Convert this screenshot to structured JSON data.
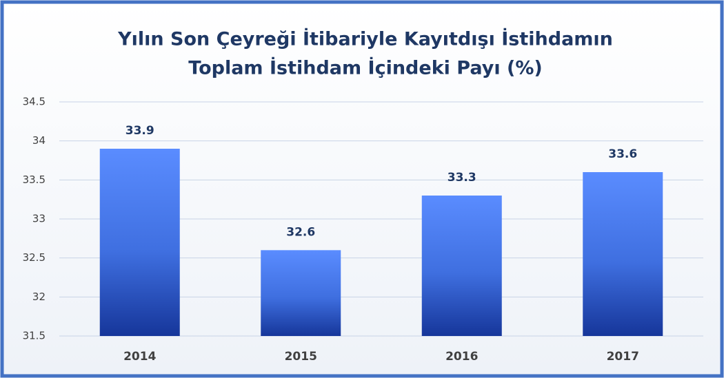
{
  "chart_data": {
    "type": "bar",
    "title": [
      "Yılın Son Çeyreği İtibariyle Kayıtdışı İstihdamın",
      "Toplam İstihdam İçindeki Payı (%)"
    ],
    "categories": [
      "2014",
      "2015",
      "2016",
      "2017"
    ],
    "values": [
      33.9,
      32.6,
      33.3,
      33.6
    ],
    "color": "#3f6fe0",
    "ylim": [
      31.5,
      34.5
    ],
    "yticks": [
      31.5,
      32,
      32.5,
      33,
      33.5,
      34,
      34.5
    ],
    "grid": true
  }
}
